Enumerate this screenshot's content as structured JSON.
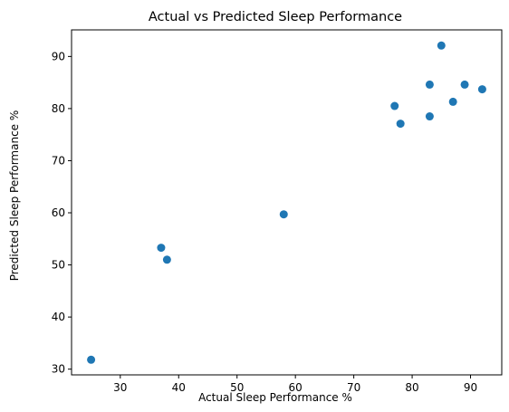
{
  "chart_data": {
    "type": "scatter",
    "title": "Actual vs Predicted Sleep Performance",
    "xlabel": "Actual Sleep Performance %",
    "ylabel": "Predicted Sleep Performance %",
    "xlim": [
      21.65,
      95.35
    ],
    "ylim": [
      28.9,
      95.1
    ],
    "xticks": [
      30,
      40,
      50,
      60,
      70,
      80,
      90
    ],
    "yticks": [
      30,
      40,
      50,
      60,
      70,
      80,
      90
    ],
    "grid": false,
    "color": "#1f77b4",
    "points": [
      {
        "x": 25,
        "y": 31.8
      },
      {
        "x": 37,
        "y": 53.3
      },
      {
        "x": 38,
        "y": 51.0
      },
      {
        "x": 58,
        "y": 59.7
      },
      {
        "x": 77,
        "y": 80.5
      },
      {
        "x": 78,
        "y": 77.1
      },
      {
        "x": 83,
        "y": 84.6
      },
      {
        "x": 83,
        "y": 78.5
      },
      {
        "x": 85,
        "y": 92.1
      },
      {
        "x": 87,
        "y": 81.3
      },
      {
        "x": 89,
        "y": 84.6
      },
      {
        "x": 92,
        "y": 83.7
      }
    ]
  }
}
